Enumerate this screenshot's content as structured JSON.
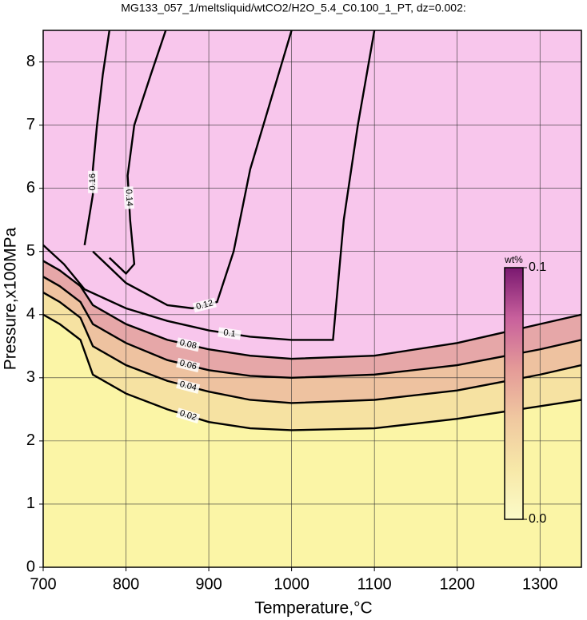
{
  "chart_data": {
    "type": "contour",
    "title": "MG133_057_1/meltsliquid/wtCO2/H2O_5.4_C0.100_1_PT, dz=0.002:",
    "x_label": "Temperature,°C",
    "y_label": "Pressure,x100MPa",
    "xlim": [
      700,
      1350
    ],
    "ylim": [
      0,
      8.5
    ],
    "xticks": [
      700,
      800,
      900,
      1000,
      1100,
      1200,
      1300
    ],
    "yticks": [
      0,
      1,
      2,
      3,
      4,
      5,
      6,
      7,
      8
    ],
    "grid": true,
    "background": "#fbf5a6",
    "series": [
      {
        "level": 0.02,
        "fill": "#f6e2a2",
        "x": [
          700,
          720,
          745,
          760,
          800,
          850,
          900,
          950,
          1000,
          1100,
          1200,
          1300,
          1350
        ],
        "y": [
          4.0,
          3.85,
          3.6,
          3.05,
          2.75,
          2.5,
          2.3,
          2.2,
          2.17,
          2.2,
          2.35,
          2.55,
          2.65
        ]
      },
      {
        "level": 0.04,
        "fill": "#eec2a0",
        "x": [
          700,
          720,
          745,
          760,
          800,
          850,
          900,
          950,
          1000,
          1100,
          1200,
          1300,
          1350
        ],
        "y": [
          4.35,
          4.2,
          3.95,
          3.5,
          3.2,
          2.95,
          2.78,
          2.65,
          2.6,
          2.65,
          2.8,
          3.05,
          3.2
        ]
      },
      {
        "level": 0.06,
        "fill": "#e6a7a8",
        "x": [
          700,
          720,
          745,
          760,
          800,
          850,
          900,
          950,
          1000,
          1100,
          1200,
          1300,
          1350
        ],
        "y": [
          4.6,
          4.45,
          4.2,
          3.85,
          3.55,
          3.28,
          3.12,
          3.03,
          3.0,
          3.05,
          3.2,
          3.45,
          3.6
        ]
      },
      {
        "level": 0.08,
        "fill": "#f8c6ec",
        "x": [
          700,
          720,
          745,
          760,
          800,
          850,
          900,
          950,
          1000,
          1100,
          1200,
          1300,
          1350
        ],
        "y": [
          4.85,
          4.7,
          4.45,
          4.15,
          3.85,
          3.6,
          3.45,
          3.35,
          3.3,
          3.35,
          3.55,
          3.85,
          4.0
        ]
      },
      {
        "level": 0.1,
        "x": [
          700,
          725,
          750,
          800,
          850,
          900,
          950,
          1000,
          1050,
          1063,
          1080,
          1100
        ],
        "y": [
          5.1,
          4.8,
          4.4,
          4.1,
          3.9,
          3.75,
          3.65,
          3.6,
          3.6,
          5.5,
          7.0,
          8.5
        ]
      },
      {
        "level": 0.12,
        "x": [
          760,
          800,
          850,
          880,
          910,
          930,
          950,
          975,
          1000
        ],
        "y": [
          5.0,
          4.5,
          4.15,
          4.1,
          4.2,
          5.0,
          6.3,
          7.4,
          8.5
        ]
      },
      {
        "level": 0.14,
        "x": [
          780,
          800,
          810,
          805,
          802,
          810,
          830,
          848
        ],
        "y": [
          4.9,
          4.65,
          4.8,
          5.5,
          6.2,
          7.0,
          7.8,
          8.5
        ]
      },
      {
        "level": 0.16,
        "x": [
          750,
          755,
          760,
          760,
          765,
          772,
          780
        ],
        "y": [
          5.1,
          5.5,
          5.9,
          6.3,
          7.0,
          7.8,
          8.5
        ]
      }
    ],
    "colorbar": {
      "label": "wt%",
      "lim": [
        0,
        0.1
      ],
      "ticks": [
        {
          "value": 0,
          "label": "0.0"
        },
        0.1
      ],
      "colors": [
        "#fbfbc8",
        "#f7e8a8",
        "#f0c8a0",
        "#e49a98",
        "#c8609c",
        "#7a1870"
      ]
    }
  }
}
